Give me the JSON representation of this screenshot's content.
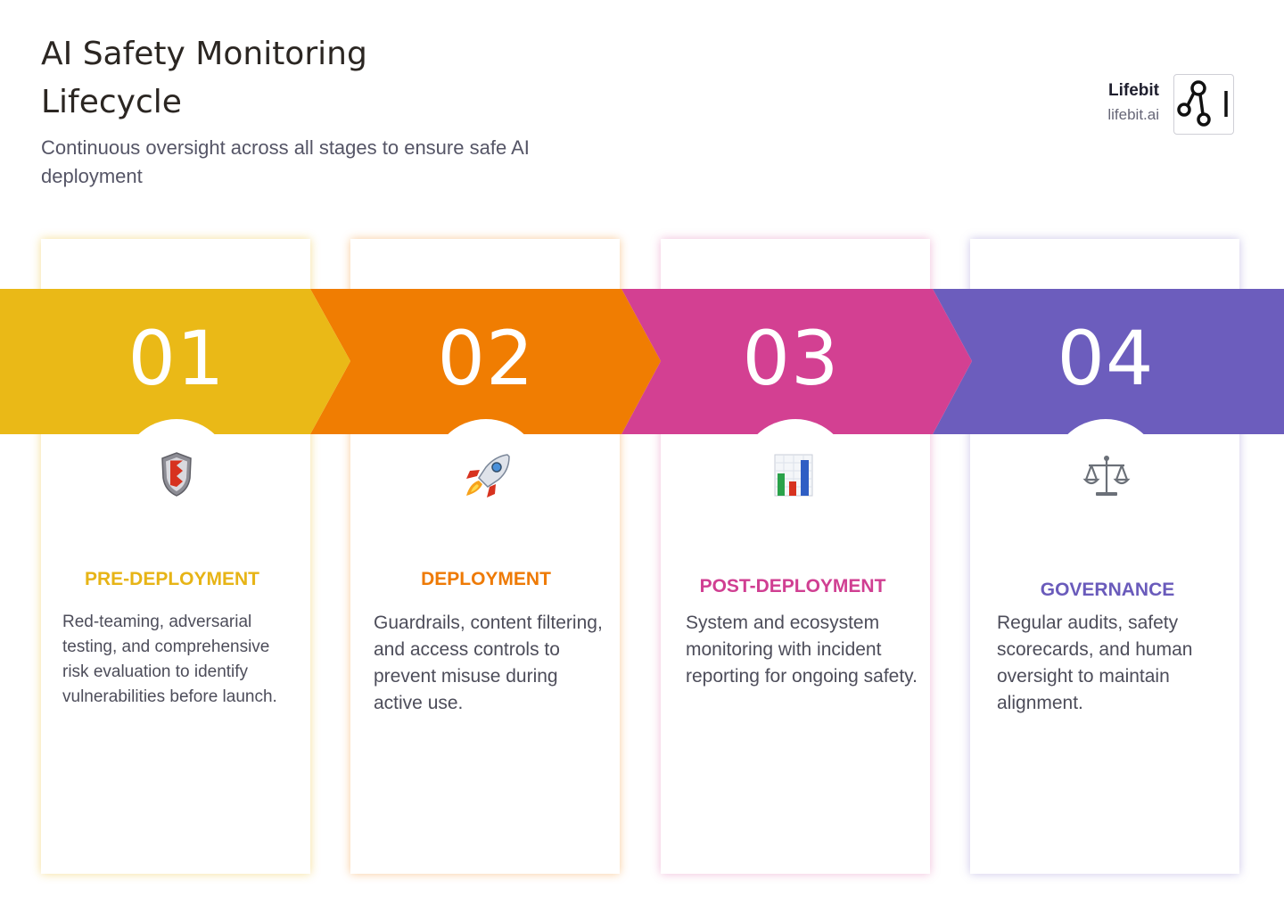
{
  "header": {
    "title": "AI Safety Monitoring Lifecycle",
    "subtitle": "Continuous oversight across all stages to ensure safe AI deployment"
  },
  "brand": {
    "name": "Lifebit",
    "url": "lifebit.ai"
  },
  "stages": [
    {
      "number": "01",
      "title": "PRE-DEPLOYMENT",
      "description": "Red-teaming, adversarial testing, and comprehensive risk evaluation to identify vulnerabilities before launch.",
      "icon": "shield-icon",
      "color": "#EAB917"
    },
    {
      "number": "02",
      "title": "DEPLOYMENT",
      "description": "Guardrails, content filtering, and access controls to prevent misuse during active use.",
      "icon": "rocket-icon",
      "color": "#F07D02"
    },
    {
      "number": "03",
      "title": "POST-DEPLOYMENT",
      "description": "System and ecosystem monitoring with incident reporting for ongoing safety.",
      "icon": "bar-chart-icon",
      "color": "#D34092"
    },
    {
      "number": "04",
      "title": "GOVERNANCE",
      "description": "Regular audits, safety scorecards, and human oversight to maintain alignment.",
      "icon": "scales-icon",
      "color": "#6C5DBD"
    }
  ]
}
